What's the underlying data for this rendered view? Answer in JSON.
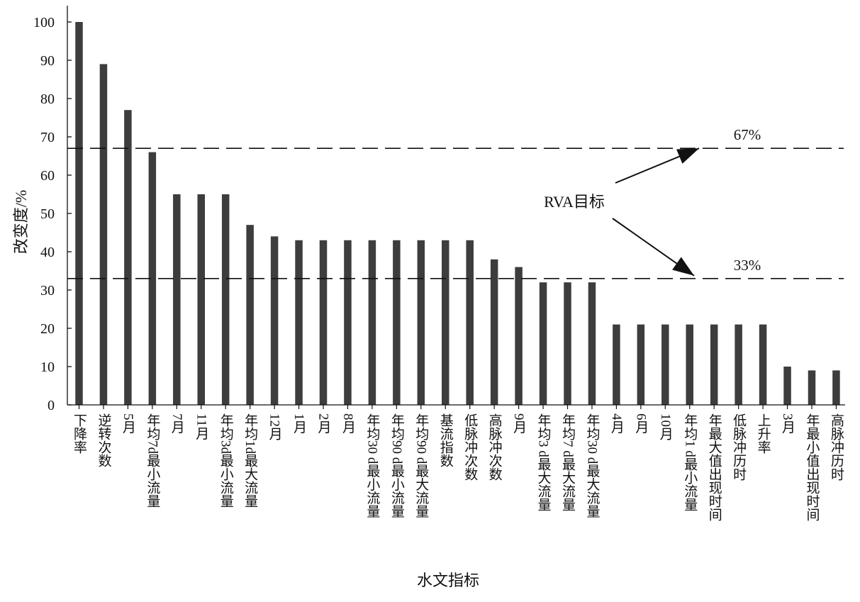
{
  "chart_data": {
    "type": "bar",
    "ylabel": "改变度/%",
    "xlabel": "水文指标",
    "ylim": [
      0,
      100
    ],
    "yticks": [
      0,
      10,
      20,
      30,
      40,
      50,
      60,
      70,
      80,
      90,
      100
    ],
    "bar_color": "#3d3d3d",
    "categories": [
      "下降率",
      "逆转次数",
      "5月",
      "年均7d最小流量",
      "7月",
      "11月",
      "年均3d最小流量",
      "年均1d最大流量",
      "12月",
      "1月",
      "2月",
      "8月",
      "年均30 d最小流量",
      "年均90 d最小流量",
      "年均90 d最大流量",
      "基流指数",
      "低脉冲次数",
      "高脉冲次数",
      "9月",
      "年均3 d最大流量",
      "年均7 d最大流量",
      "年均30 d最大流量",
      "4月",
      "6月",
      "10月",
      "年均1 d最小流量",
      "年最大值出现时间",
      "低脉冲历时",
      "上升率",
      "3月",
      "年最小值出现时间",
      "高脉冲历时"
    ],
    "values": [
      100,
      89,
      77,
      66,
      55,
      55,
      55,
      47,
      44,
      43,
      43,
      43,
      43,
      43,
      43,
      43,
      43,
      38,
      36,
      32,
      32,
      32,
      21,
      21,
      21,
      21,
      21,
      21,
      21,
      10,
      9,
      9
    ],
    "reference_lines": [
      {
        "value": 67,
        "label": "67%"
      },
      {
        "value": 33,
        "label": "33%"
      }
    ],
    "annotation": "RVA目标"
  }
}
